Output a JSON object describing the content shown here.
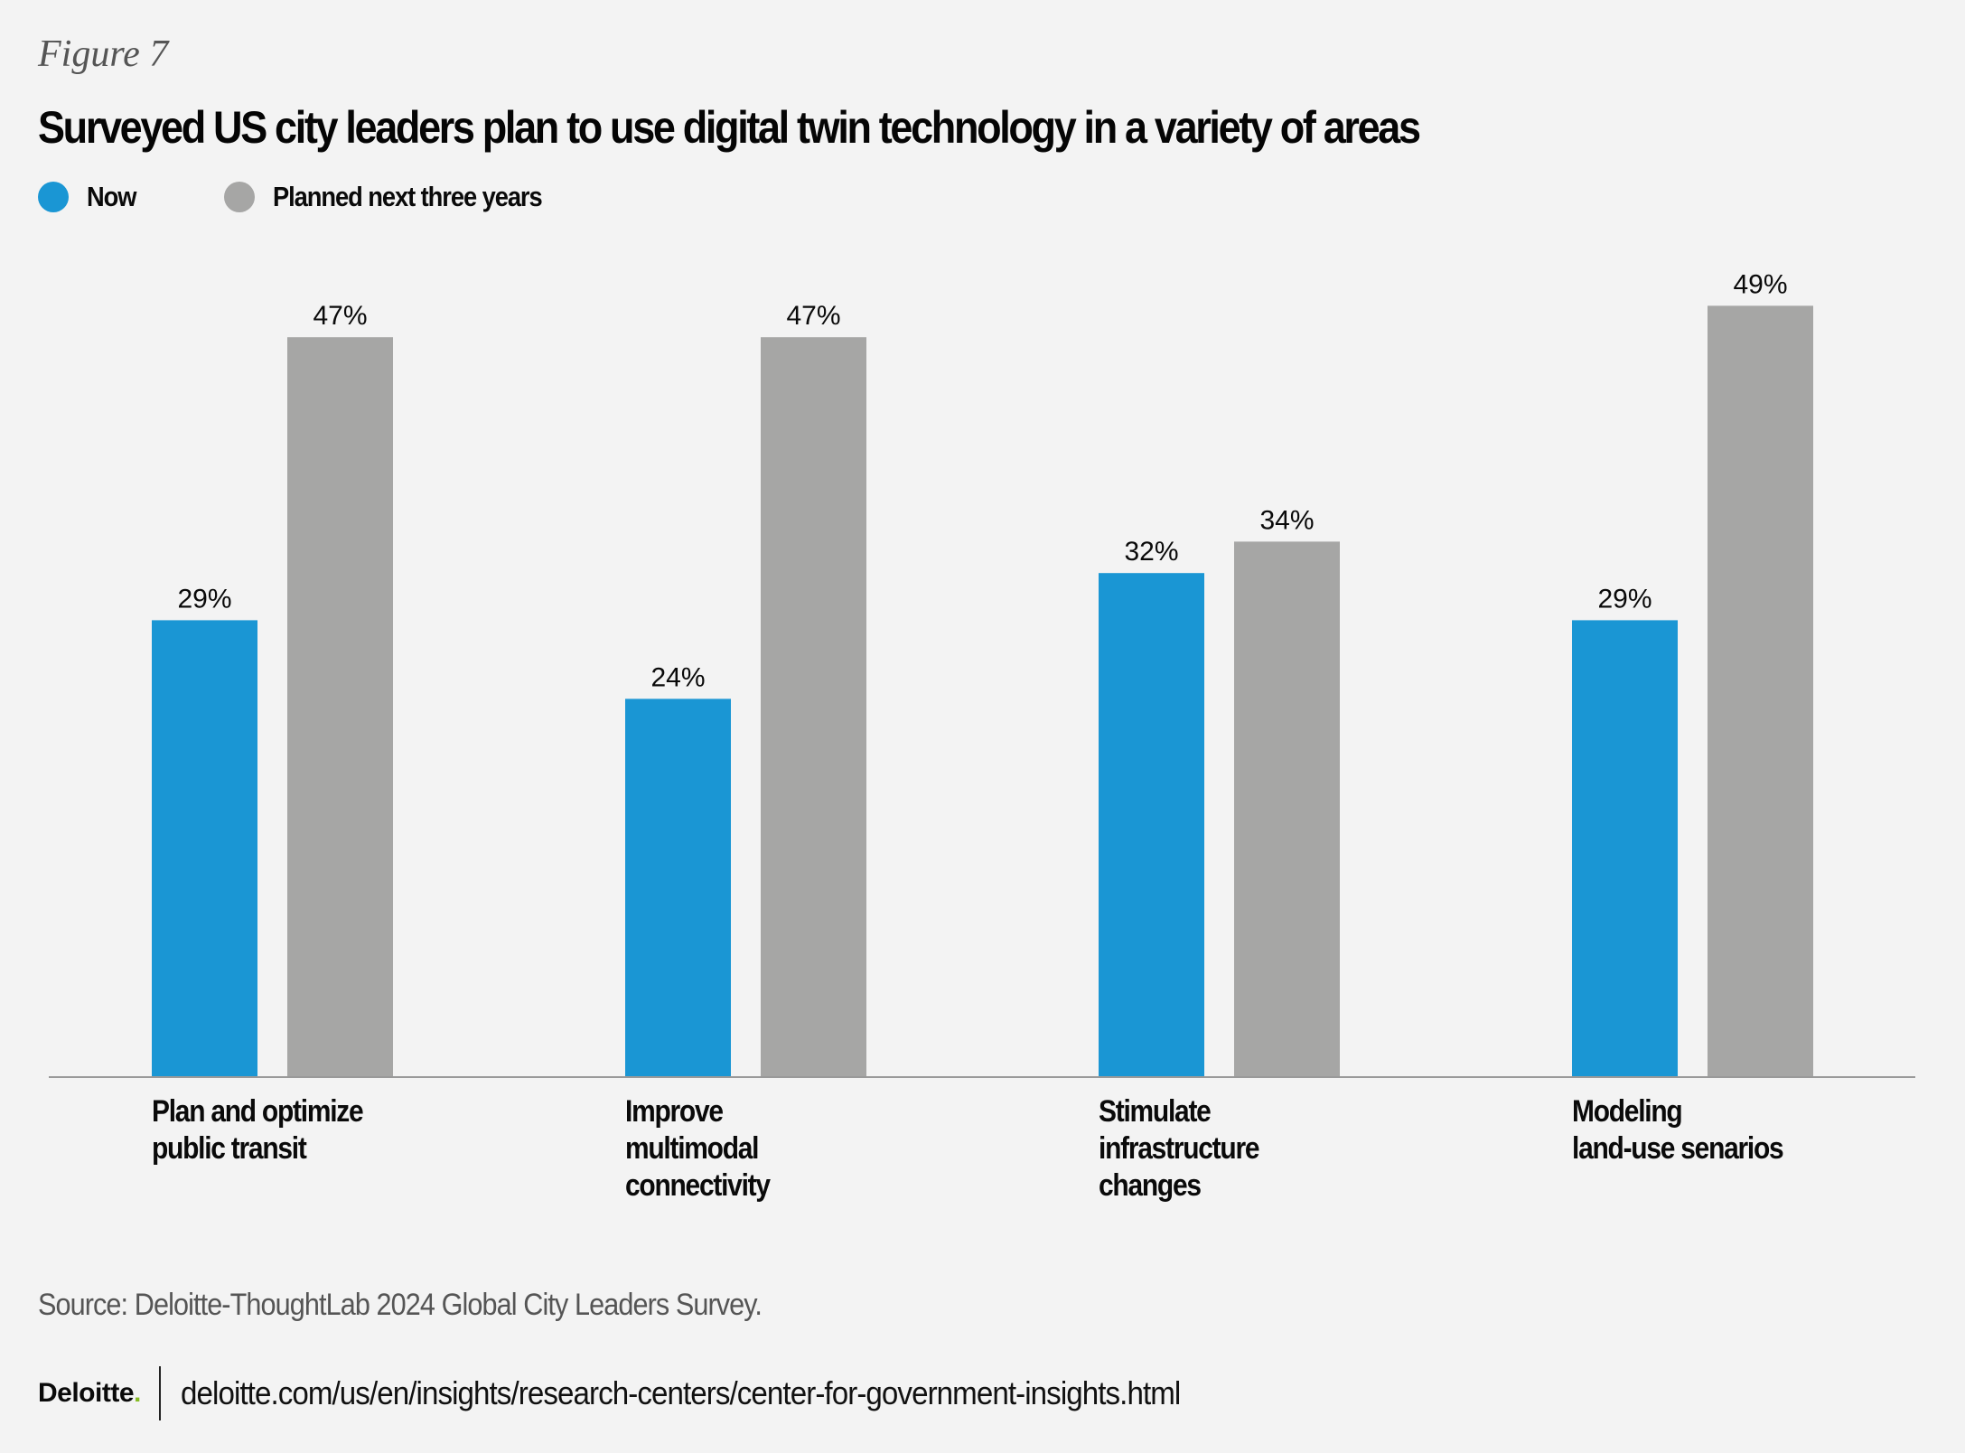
{
  "figure_label": "Figure 7",
  "colors": {
    "now": "#1a96d4",
    "planned": "#a6a6a5",
    "axis": "#999999",
    "logo_dot": "#86bc25"
  },
  "chart_data": {
    "type": "bar",
    "title": "Surveyed US city leaders plan to use digital twin technology in a variety of areas",
    "xlabel": "",
    "ylabel": "",
    "ylim": [
      0,
      52
    ],
    "grid": false,
    "legend_position": "top-left",
    "categories": [
      "Plan and optimize\npublic transit",
      "Improve\nmultimodal\nconnectivity",
      "Stimulate\ninfrastructure\nchanges",
      "Modeling\nland-use senarios"
    ],
    "series": [
      {
        "name": "Now",
        "values": [
          29,
          24,
          32,
          29
        ],
        "labels": [
          "29%",
          "24%",
          "32%",
          "29%"
        ]
      },
      {
        "name": "Planned next three years",
        "values": [
          47,
          47,
          34,
          49
        ],
        "labels": [
          "47%",
          "47%",
          "34%",
          "49%"
        ]
      }
    ]
  },
  "legend": {
    "now": "Now",
    "planned": "Planned next three years"
  },
  "source": "Source: Deloitte-ThoughtLab 2024 Global City Leaders Survey.",
  "footer": {
    "logo": "Deloitte",
    "logo_dot": ".",
    "url": "deloitte.com/us/en/insights/research-centers/center-for-government-insights.html"
  }
}
